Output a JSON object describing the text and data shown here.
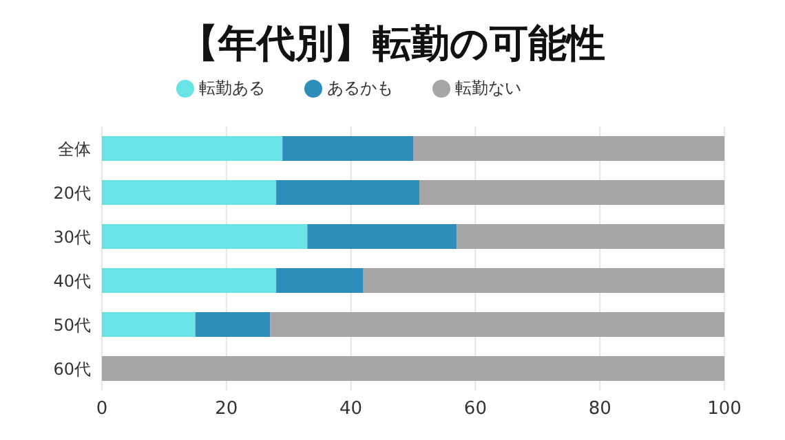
{
  "chart_data": {
    "type": "bar",
    "title": "【年代別】転勤の可能性",
    "orientation": "horizontal",
    "stacked": true,
    "categories": [
      "全体",
      "20代",
      "30代",
      "40代",
      "50代",
      "60代"
    ],
    "series": [
      {
        "name": "転勤ある",
        "color": "#6ae3e6",
        "values": [
          29,
          28,
          33,
          28,
          15,
          0
        ]
      },
      {
        "name": "あるかも",
        "color": "#2f8dbb",
        "values": [
          21,
          23,
          24,
          14,
          12,
          0
        ]
      },
      {
        "name": "転勤ない",
        "color": "#a6a6a6",
        "values": [
          50,
          49,
          43,
          58,
          73,
          100
        ]
      }
    ],
    "xlim": [
      0,
      100
    ],
    "xticks": [
      0,
      20,
      40,
      60,
      80,
      100
    ],
    "grid": "x",
    "legend": "top"
  }
}
